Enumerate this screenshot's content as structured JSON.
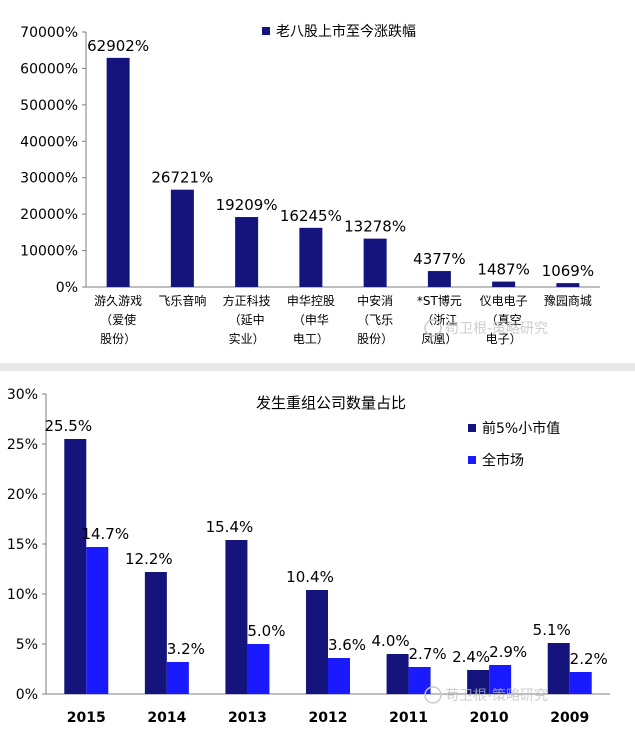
{
  "colors": {
    "navy": "#14147c",
    "blue": "#1a1aff",
    "axis": "#7f7f7f",
    "separator": "#e8e8e8"
  },
  "chart_data": [
    {
      "type": "bar",
      "legend": [
        "老八股上市至今涨跌幅"
      ],
      "legend_position": "top-right",
      "categories": [
        [
          "游久游戏",
          "（爱使",
          "股份）"
        ],
        [
          "飞乐音响"
        ],
        [
          "方正科技",
          "（延中",
          "实业）"
        ],
        [
          "申华控股",
          "（申华",
          "电工）"
        ],
        [
          "中安消",
          "（飞乐",
          "股份）"
        ],
        [
          "*ST博元",
          "（浙江",
          "凤凰）"
        ],
        [
          "仪电电子",
          "（真空",
          "电子）"
        ],
        [
          "豫园商城"
        ]
      ],
      "series": [
        {
          "name": "老八股上市至今涨跌幅",
          "values": [
            62902,
            26721,
            19209,
            16245,
            13278,
            4377,
            1487,
            1069
          ],
          "labels": [
            "62902%",
            "26721%",
            "19209%",
            "16245%",
            "13278%",
            "4377%",
            "1487%",
            "1069%"
          ]
        }
      ],
      "ylim": [
        0,
        70000
      ],
      "yticks": [
        "0%",
        "10000%",
        "20000%",
        "30000%",
        "40000%",
        "50000%",
        "60000%",
        "70000%"
      ],
      "grid": false
    },
    {
      "type": "bar",
      "title": "发生重组公司数量占比",
      "legend": [
        "前5%小市值",
        "全市场"
      ],
      "legend_position": "top-right",
      "categories": [
        "2015",
        "2014",
        "2013",
        "2012",
        "2011",
        "2010",
        "2009"
      ],
      "series": [
        {
          "name": "前5%小市值",
          "values": [
            25.5,
            12.2,
            15.4,
            10.4,
            4.0,
            2.4,
            5.1
          ],
          "labels": [
            "25.5%",
            "12.2%",
            "15.4%",
            "10.4%",
            "4.0%",
            "2.4%",
            "5.1%"
          ]
        },
        {
          "name": "全市场",
          "values": [
            14.7,
            3.2,
            5.0,
            3.6,
            2.7,
            2.9,
            2.2
          ],
          "labels": [
            "14.7%",
            "3.2%",
            "5.0%",
            "3.6%",
            "2.7%",
            "2.9%",
            "2.2%"
          ]
        }
      ],
      "ylim": [
        0,
        30
      ],
      "yticks": [
        "0%",
        "5%",
        "10%",
        "15%",
        "20%",
        "25%",
        "30%"
      ],
      "grid": false
    }
  ],
  "watermark": [
    "苟卫根-策略研究",
    "苟卫根-策略研究"
  ]
}
